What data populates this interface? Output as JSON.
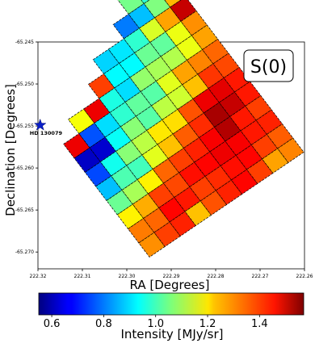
{
  "chart_data": {
    "type": "heatmap",
    "title": "",
    "panel_label": "S(0)",
    "xlabel": "RA [Degrees]",
    "ylabel": "Declination [Degrees]",
    "xlim": [
      222.32,
      222.26
    ],
    "ylim": [
      -65.272,
      -65.245
    ],
    "x_ticks": [
      "222.32",
      "222.31",
      "222.30",
      "222.29",
      "222.28",
      "222.27",
      "222.26"
    ],
    "y_ticks": [
      "-65.245",
      "-65.250",
      "-65.255",
      "-65.260",
      "-65.265",
      "-65.270"
    ],
    "colorbar": {
      "label": "Intensity [MJy/sr]",
      "range": [
        0.55,
        1.57
      ],
      "ticks": [
        "0.6",
        "0.8",
        "1.0",
        "1.2",
        "1.4"
      ],
      "colormap": "jet"
    },
    "star": {
      "name": "HD 130079",
      "ra": 222.3195,
      "dec": -65.2549,
      "color": "#0a1fc9"
    },
    "grid": {
      "rows": 14,
      "cols": 10,
      "null_value": 0,
      "cells": [
        [
          0,
          0,
          0,
          0,
          0,
          0,
          0,
          0,
          1.16,
          0.58
        ],
        [
          0,
          0,
          0,
          0,
          0,
          0,
          0,
          1.05,
          0.98,
          1.08
        ],
        [
          0,
          0,
          0,
          0,
          0,
          0,
          0.8,
          0.87,
          1.06,
          1.26
        ],
        [
          0,
          0,
          0,
          0,
          0.89,
          0.91,
          0.98,
          1.15,
          1.28,
          1.5
        ],
        [
          0,
          0,
          0,
          1.38,
          0.93,
          0.93,
          1.04,
          1.03,
          1.17,
          1.3
        ],
        [
          0,
          1.18,
          1.46,
          0.96,
          0.9,
          1.08,
          1.1,
          1.11,
          1.17,
          1.28
        ],
        [
          1.46,
          0.76,
          0.9,
          0.98,
          1.03,
          1.02,
          1.16,
          1.28,
          1.31,
          1.34
        ],
        [
          0.62,
          0.63,
          0.94,
          1.07,
          1.02,
          1.12,
          1.14,
          1.25,
          1.39,
          1.37
        ],
        [
          0.75,
          0.95,
          1.07,
          1.12,
          1.21,
          1.22,
          1.36,
          1.46,
          1.47,
          1.42
        ],
        [
          0.87,
          1.01,
          1.0,
          1.16,
          1.25,
          1.35,
          1.4,
          1.53,
          1.5,
          1.42
        ],
        [
          1.04,
          1.1,
          1.2,
          1.34,
          1.38,
          1.41,
          1.45,
          1.52,
          1.42,
          1.38
        ],
        [
          1.2,
          1.27,
          1.38,
          1.37,
          1.43,
          1.44,
          1.46,
          1.45,
          1.42,
          1.41
        ],
        [
          1.32,
          1.34,
          1.44,
          1.42,
          1.38,
          1.4,
          1.43,
          1.44,
          1.38,
          1.35
        ],
        [
          1.3,
          1.38,
          1.41,
          1.25,
          1.36,
          1.41,
          1.44,
          1.38,
          1.28,
          1.31
        ]
      ]
    }
  }
}
